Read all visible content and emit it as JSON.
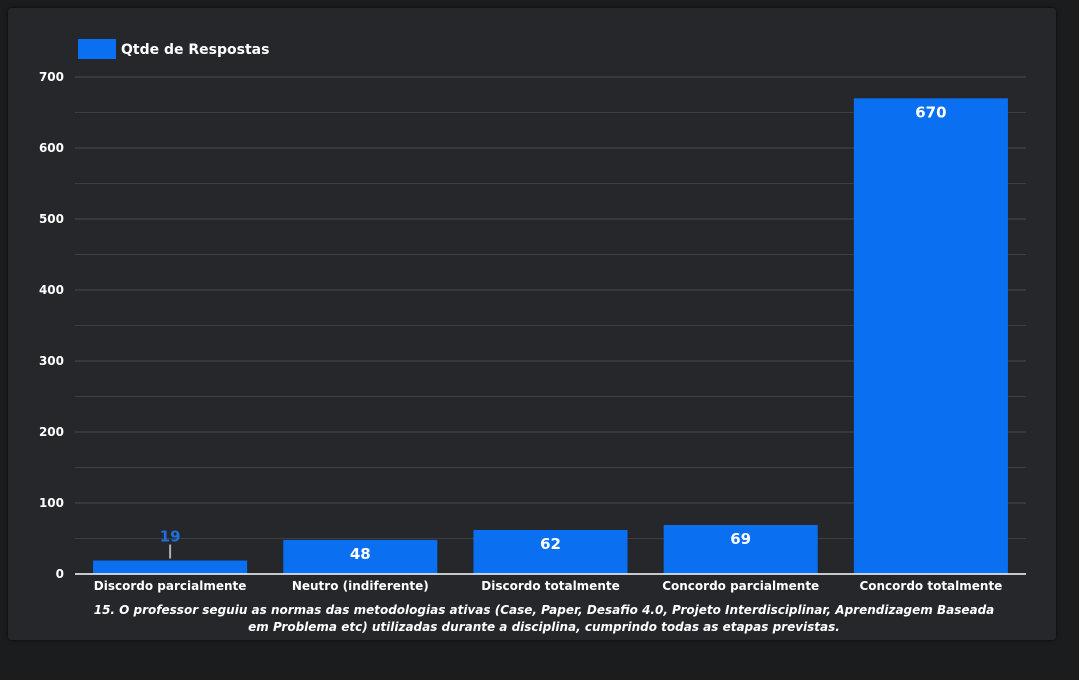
{
  "chart_data": {
    "type": "bar",
    "categories": [
      "Discordo parcialmente",
      "Neutro (indiferente)",
      "Discordo totalmente",
      "Concordo parcialmente",
      "Concordo totalmente"
    ],
    "series": [
      {
        "name": "Qtde de Respostas",
        "values": [
          19,
          48,
          62,
          69,
          670
        ],
        "color": "#0a6ff0"
      }
    ],
    "xlabel_lines": [
      "15. O professor seguiu as normas das metodologias ativas (Case, Paper, Desafio 4.0, Projeto Interdisciplinar, Aprendizagem Baseada",
      "em Problema etc) utilizadas durante a disciplina, cumprindo todas as etapas previstas."
    ],
    "ylim": [
      0,
      700
    ],
    "yticks": [
      0,
      100,
      200,
      300,
      400,
      500,
      600,
      700
    ],
    "grid": true,
    "legend_position": "top-left",
    "colors": {
      "background": "#1b1c1e",
      "panel": "#25272b",
      "bar": "#0a6ff0",
      "text": "#ffffff",
      "outside_label": "#1f6fe0",
      "gridline": "#3c3e44"
    }
  }
}
